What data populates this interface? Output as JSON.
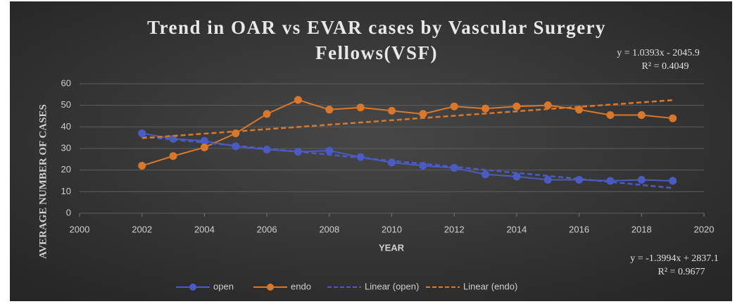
{
  "chart_data": {
    "type": "line",
    "title": [
      "Trend in OAR vs EVAR cases by Vascular Surgery",
      "Fellows(VSF)"
    ],
    "x_label": "YEAR",
    "y_label": "AVERAGE NUMBER OF CASES",
    "x": [
      2002,
      2003,
      2004,
      2005,
      2006,
      2007,
      2008,
      2009,
      2010,
      2011,
      2012,
      2013,
      2014,
      2015,
      2016,
      2017,
      2018,
      2019
    ],
    "series": [
      {
        "name": "open",
        "color": "#4a5cc4",
        "values": [
          37,
          34.5,
          33.5,
          31,
          29.5,
          28.5,
          29,
          26,
          23.5,
          22,
          21,
          18,
          17,
          15.5,
          15.5,
          15,
          15.5,
          15
        ]
      },
      {
        "name": "endo",
        "color": "#d9782a",
        "values": [
          22,
          26.5,
          30.5,
          37,
          46,
          52.5,
          48,
          49,
          47.5,
          46,
          49.5,
          48.5,
          49.5,
          50,
          48,
          45.5,
          45.5,
          44
        ]
      }
    ],
    "trendlines": [
      {
        "name": "Linear (open)",
        "color": "#4a5cc4",
        "x": [
          2002,
          2019
        ],
        "values": [
          35.5,
          11.7
        ],
        "equation": "y = -1.3994x + 2837.1",
        "r2": "R² = 0.9677"
      },
      {
        "name": "Linear (endo)",
        "color": "#d9782a",
        "x": [
          2002,
          2019
        ],
        "values": [
          34.8,
          52.4
        ],
        "equation": "y = 1.0393x - 2045.9",
        "r2": "R² = 0.4049"
      }
    ],
    "xlim": [
      2000,
      2020
    ],
    "xticks": [
      2000,
      2002,
      2004,
      2006,
      2008,
      2010,
      2012,
      2014,
      2016,
      2018,
      2020
    ],
    "ylim": [
      0,
      60
    ],
    "yticks": [
      0,
      10,
      20,
      30,
      40,
      50,
      60
    ],
    "grid": true,
    "legend": "bottom"
  }
}
